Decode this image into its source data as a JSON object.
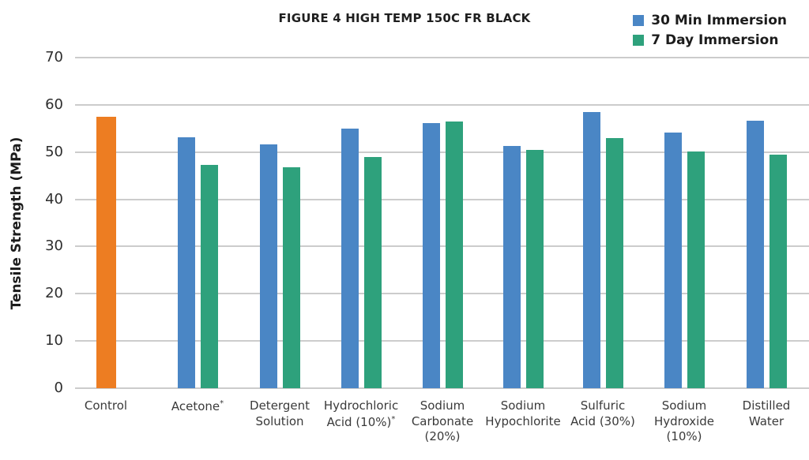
{
  "chart_data": {
    "type": "bar",
    "title": "FIGURE 4 HIGH TEMP 150C FR BLACK",
    "ylabel": "Tensile Strength (MPa)",
    "ylim": [
      0,
      70
    ],
    "yticks": [
      0,
      10,
      20,
      30,
      40,
      50,
      60,
      70
    ],
    "grid": true,
    "legend_position": "top-right",
    "legend": [
      {
        "label": "30 Min Immersion",
        "color": "#4a86c5"
      },
      {
        "label": "7 Day Immersion",
        "color": "#2ea17c"
      }
    ],
    "categories": [
      "Control",
      "Acetone*",
      "Detergent\nSolution",
      "Hydrochloric\nAcid (10%)*",
      "Sodium\nCarbonate\n(20%)",
      "Sodium\nHypochlorite",
      "Sulfuric\nAcid (30%)",
      "Sodium\nHydroxide\n(10%)",
      "Distilled\nWater"
    ],
    "series": [
      {
        "name": "Control",
        "color": "#ed7d22",
        "values": [
          57.4,
          null,
          null,
          null,
          null,
          null,
          null,
          null,
          null
        ]
      },
      {
        "name": "30 Min Immersion",
        "color": "#4a86c5",
        "values": [
          null,
          53.2,
          51.6,
          54.9,
          56.2,
          51.3,
          58.4,
          54.1,
          56.6
        ]
      },
      {
        "name": "7 Day Immersion",
        "color": "#2ea17c",
        "values": [
          null,
          47.3,
          46.7,
          49.0,
          56.4,
          50.5,
          53.0,
          50.1,
          49.4
        ]
      }
    ]
  }
}
